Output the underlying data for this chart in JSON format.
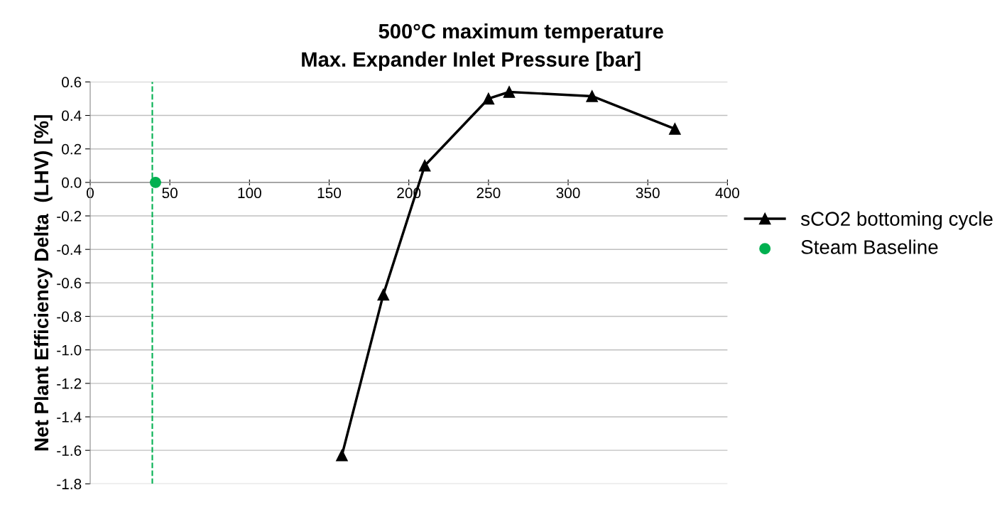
{
  "chart_data": {
    "type": "line",
    "title": "500°C maximum temperature",
    "xlabel": "Max. Expander Inlet Pressure [bar]",
    "ylabel": "Net Plant Efficiency Delta  (LHV) [%]",
    "xlim": [
      0,
      400
    ],
    "xticks": [
      0,
      50,
      100,
      150,
      200,
      250,
      300,
      350,
      400
    ],
    "ylim": [
      -1.8,
      0.6
    ],
    "yticks": [
      {
        "value": -1.8,
        "label": "-1.8"
      },
      {
        "value": -1.6,
        "label": "-1.6"
      },
      {
        "value": -1.4,
        "label": "-1.4"
      },
      {
        "value": -1.2,
        "label": "-1.2"
      },
      {
        "value": -1.0,
        "label": "-1.0"
      },
      {
        "value": -0.8,
        "label": "-0.8"
      },
      {
        "value": -0.6,
        "label": "-0.6"
      },
      {
        "value": -0.4,
        "label": "-0.4"
      },
      {
        "value": -0.2,
        "label": "-0.2"
      },
      {
        "value": 0.0,
        "label": "0.0"
      },
      {
        "value": 0.2,
        "label": "0.2"
      },
      {
        "value": 0.4,
        "label": "0.4"
      },
      {
        "value": 0.6,
        "label": "0.6"
      }
    ],
    "grid": "y",
    "legend": "right",
    "series": [
      {
        "name": "sCO2 bottoming cycle",
        "color": "#000000",
        "marker": "triangle",
        "x": [
          158,
          184,
          210,
          250,
          263,
          315,
          367
        ],
        "values": [
          -1.63,
          -0.67,
          0.1,
          0.5,
          0.54,
          0.515,
          0.32
        ]
      },
      {
        "name": "Steam Baseline",
        "color": "#00b050",
        "type": "scatter",
        "marker": "circle",
        "x": [
          41
        ],
        "values": [
          0.0
        ]
      }
    ],
    "ref_lines": [
      {
        "axis": "x",
        "value": 39,
        "color": "#00b050",
        "line_style": "dashed"
      }
    ]
  }
}
